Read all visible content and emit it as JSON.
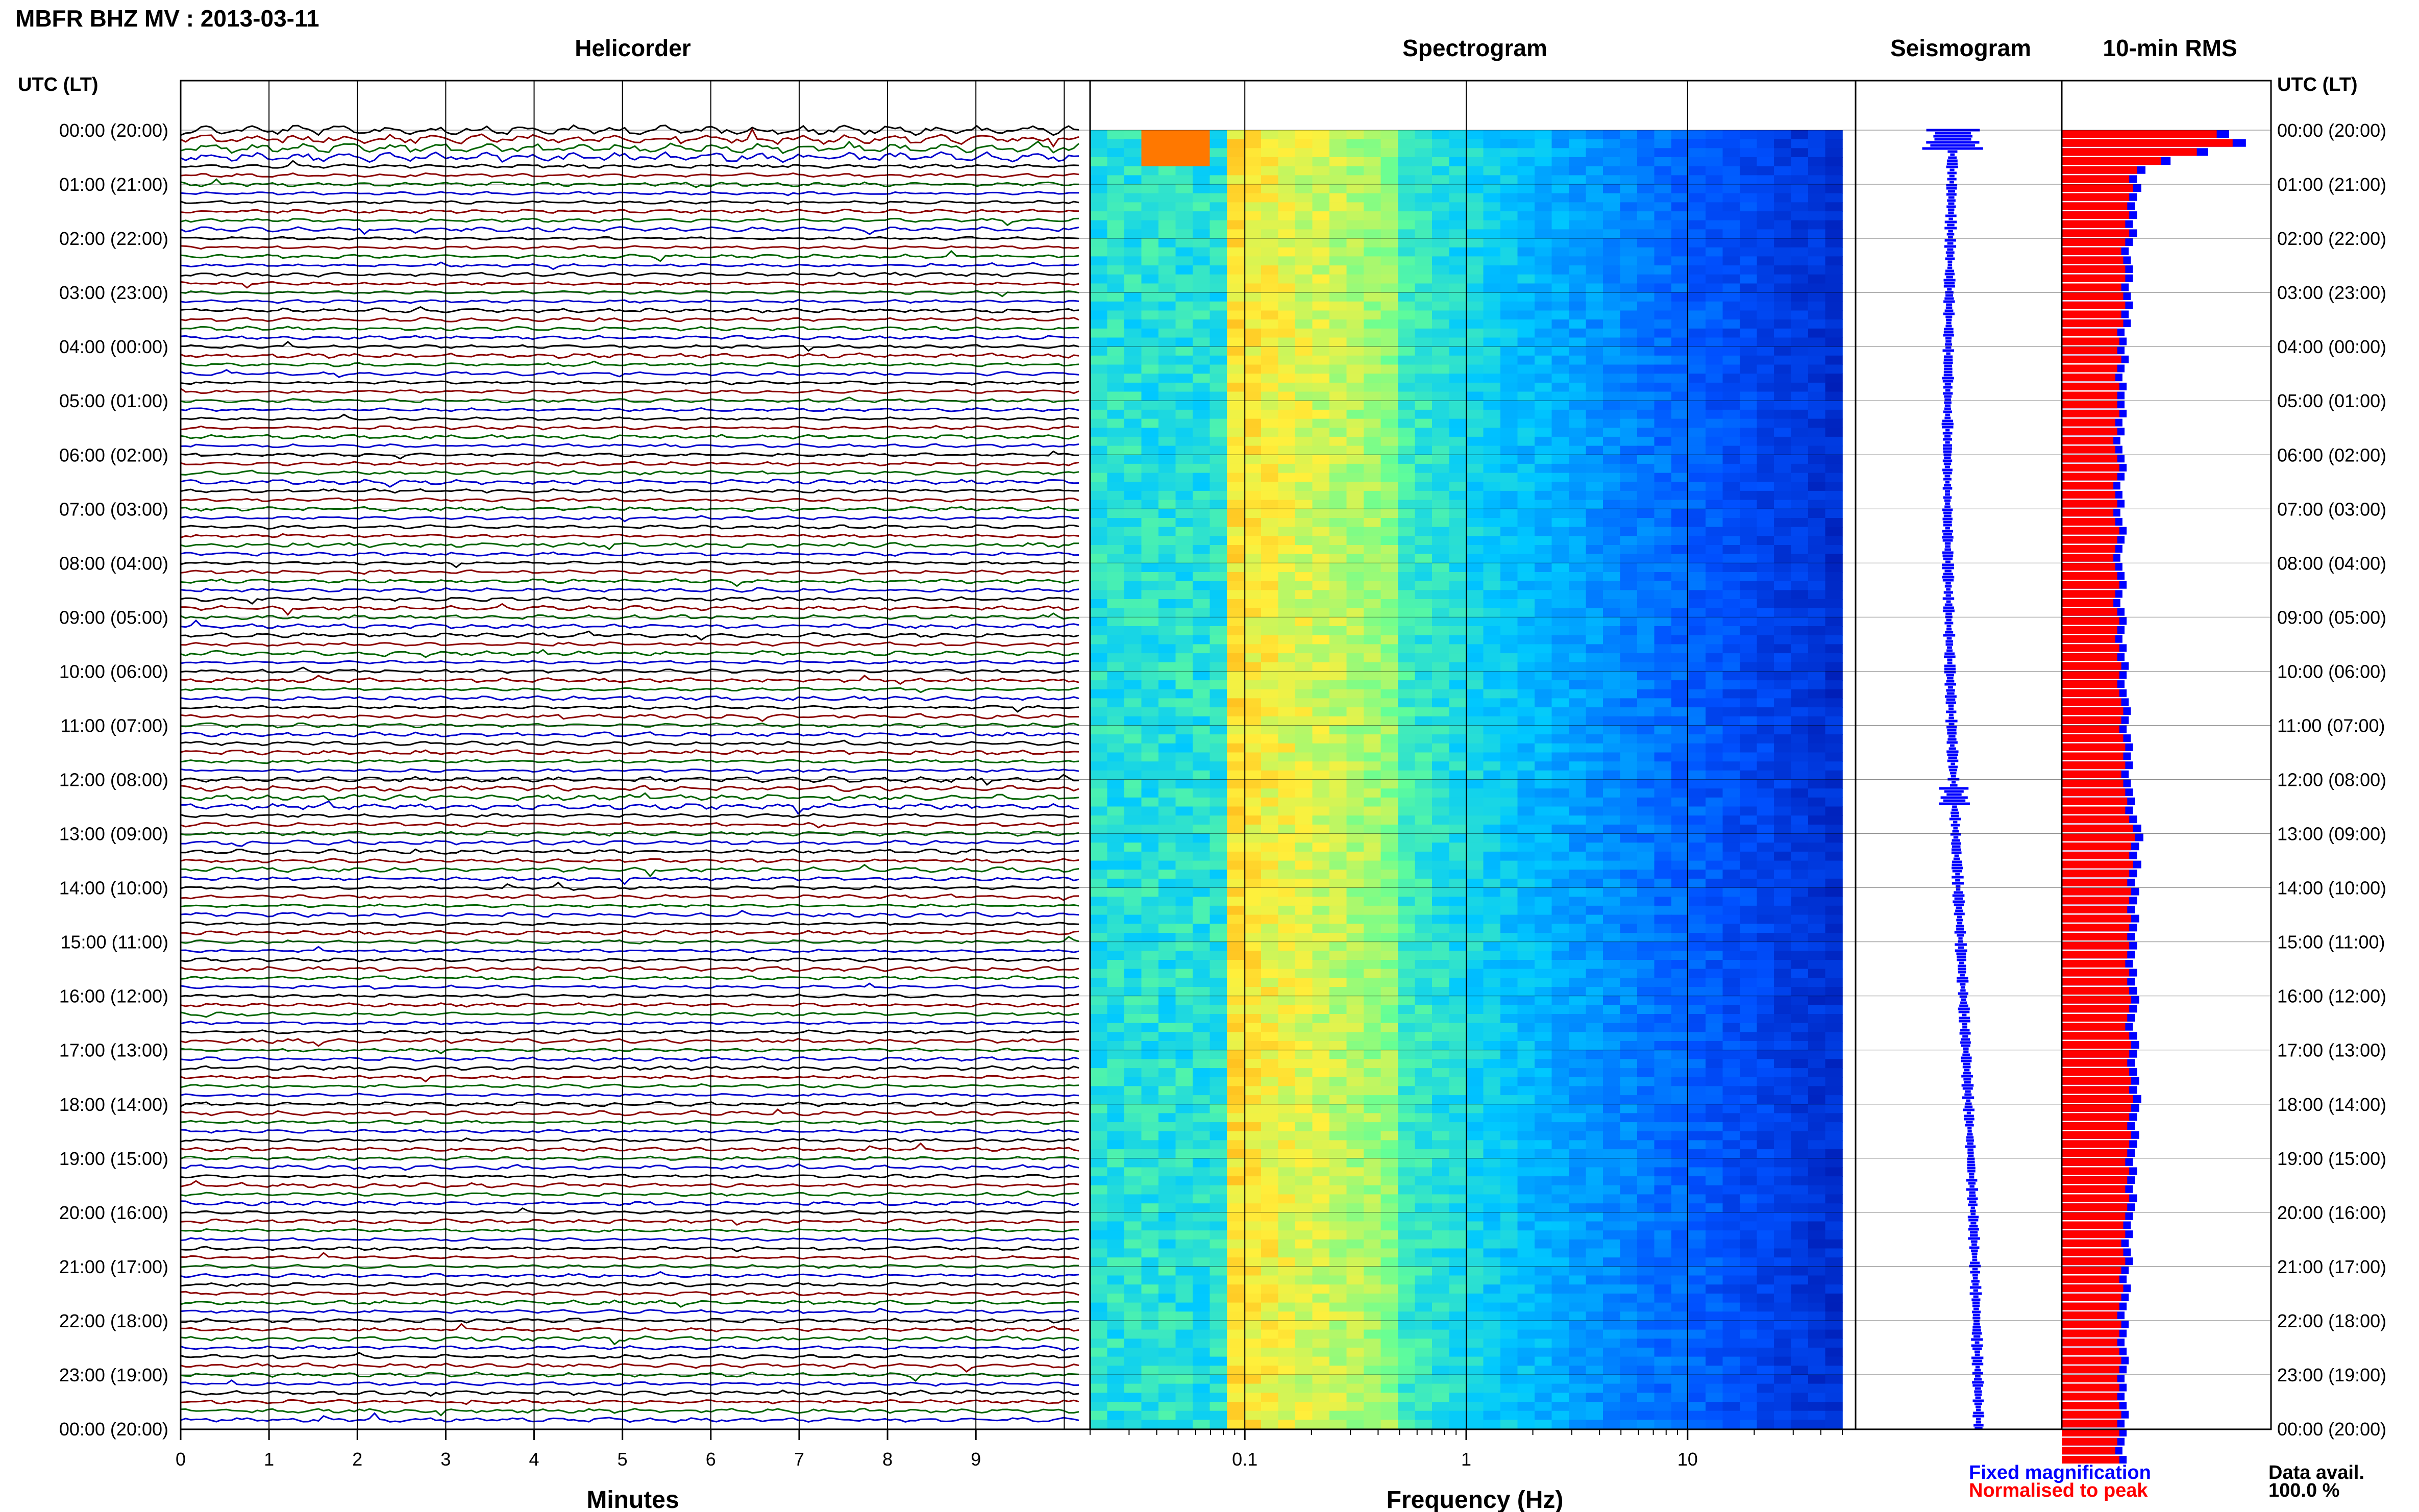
{
  "header": {
    "title": "MBFR BHZ MV : 2013-03-11",
    "utc_label_left": "UTC (LT)",
    "utc_label_right": "UTC (LT)"
  },
  "panels": {
    "helicorder": "Helicorder",
    "spectrogram": "Spectrogram",
    "seismogram": "Seismogram",
    "rms": "10-min RMS"
  },
  "axes": {
    "minutes_label": "Minutes",
    "frequency_label": "Frequency (Hz)",
    "minute_ticks": [
      "0",
      "1",
      "2",
      "3",
      "4",
      "5",
      "6",
      "7",
      "8",
      "9"
    ],
    "frequency_ticks": [
      "0.1",
      "1",
      "10"
    ]
  },
  "legend": {
    "fixed": "Fixed magnification",
    "normalised": "Normalised to peak",
    "fixed_color": "#0000ff",
    "normalised_color": "#ff0000"
  },
  "availability": {
    "label": "Data avail.",
    "value": "100.0 %"
  },
  "colors": {
    "trace_cycle": [
      "#000000",
      "#8b0000",
      "#006400",
      "#0000cd"
    ],
    "spectrogram_low": "#00008b",
    "spectrogram_high": "#ff3300",
    "rms_bar": "#ff0000",
    "rms_outline": "#0000ff"
  },
  "chart_data": {
    "type": "heatmap",
    "hour_labels": [
      "00:00 (20:00)",
      "01:00 (21:00)",
      "02:00 (22:00)",
      "03:00 (23:00)",
      "04:00 (00:00)",
      "05:00 (01:00)",
      "06:00 (02:00)",
      "07:00 (03:00)",
      "08:00 (04:00)",
      "09:00 (05:00)",
      "10:00 (06:00)",
      "11:00 (07:00)",
      "12:00 (08:00)",
      "13:00 (09:00)",
      "14:00 (10:00)",
      "15:00 (11:00)",
      "16:00 (12:00)",
      "17:00 (13:00)",
      "18:00 (14:00)",
      "19:00 (15:00)",
      "20:00 (16:00)",
      "21:00 (17:00)",
      "22:00 (18:00)",
      "23:00 (19:00)",
      "00:00 (20:00)"
    ],
    "minutes_range": [
      0,
      10
    ],
    "frequency_range_hz": [
      0.02,
      50
    ],
    "frequency_scale": "log",
    "rms_fixed": [
      0.8,
      0.88,
      0.7,
      0.52,
      0.4,
      0.36,
      0.38,
      0.36,
      0.35,
      0.36,
      0.34,
      0.36,
      0.34,
      0.32,
      0.33,
      0.34,
      0.34,
      0.32,
      0.33,
      0.34,
      0.32,
      0.33,
      0.3,
      0.31,
      0.3,
      0.32,
      0.3,
      0.29,
      0.31,
      0.3,
      0.3,
      0.31,
      0.29,
      0.3,
      0.28,
      0.29,
      0.3,
      0.31,
      0.3,
      0.28,
      0.29,
      0.3,
      0.28,
      0.29,
      0.31,
      0.3,
      0.29,
      0.28,
      0.29,
      0.3,
      0.31,
      0.29,
      0.28,
      0.3,
      0.31,
      0.3,
      0.29,
      0.31,
      0.3,
      0.32,
      0.31,
      0.3,
      0.31,
      0.32,
      0.33,
      0.32,
      0.31,
      0.33,
      0.34,
      0.33,
      0.34,
      0.32,
      0.33,
      0.34,
      0.35,
      0.34,
      0.36,
      0.38,
      0.39,
      0.37,
      0.36,
      0.38,
      0.36,
      0.35,
      0.37,
      0.36,
      0.35,
      0.37,
      0.36,
      0.35,
      0.36,
      0.35,
      0.34,
      0.36,
      0.35,
      0.36,
      0.37,
      0.36,
      0.35,
      0.34,
      0.36,
      0.37,
      0.36,
      0.35,
      0.36,
      0.37,
      0.36,
      0.38,
      0.37,
      0.36,
      0.35,
      0.37,
      0.36,
      0.35,
      0.34,
      0.36,
      0.35,
      0.34,
      0.36,
      0.35,
      0.34,
      0.33,
      0.34,
      0.32,
      0.33,
      0.34,
      0.32,
      0.31,
      0.33,
      0.32,
      0.31,
      0.3,
      0.32,
      0.31,
      0.3,
      0.31,
      0.32,
      0.31,
      0.3,
      0.31,
      0.3,
      0.31,
      0.32,
      0.3,
      0.31,
      0.3,
      0.29,
      0.31
    ]
  }
}
